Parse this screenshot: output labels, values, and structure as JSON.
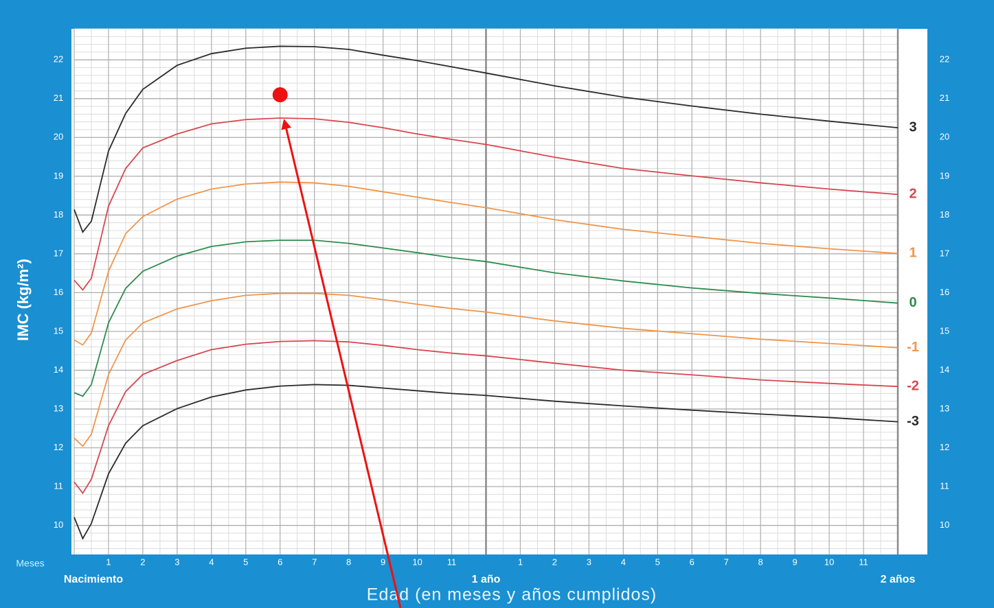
{
  "chart_data": {
    "type": "line",
    "y_label": "IMC (kg/m²)",
    "x_label": "Edad (en meses y años cumplidos)",
    "x_unit_label": "Meses",
    "xlim": [
      0,
      24
    ],
    "ylim": [
      9.25,
      22.8
    ],
    "yticks": [
      10,
      11,
      12,
      13,
      14,
      15,
      16,
      17,
      18,
      19,
      20,
      21,
      22
    ],
    "xticks": [
      {
        "value": 0,
        "label": "Nacimiento"
      },
      1,
      2,
      3,
      4,
      5,
      6,
      7,
      8,
      9,
      10,
      11,
      {
        "value": 12,
        "label": "1 año"
      },
      {
        "value": 13,
        "label": "1"
      },
      {
        "value": 14,
        "label": "2"
      },
      {
        "value": 15,
        "label": "3"
      },
      {
        "value": 16,
        "label": "4"
      },
      {
        "value": 17,
        "label": "5"
      },
      {
        "value": 18,
        "label": "6"
      },
      {
        "value": 19,
        "label": "7"
      },
      {
        "value": 20,
        "label": "8"
      },
      {
        "value": 21,
        "label": "9"
      },
      {
        "value": 22,
        "label": "10"
      },
      {
        "value": 23,
        "label": "11"
      },
      {
        "value": 24,
        "label": "2 años"
      }
    ],
    "grid": true,
    "x_minor_step": 0.5,
    "y_minor_step": 0.2,
    "x": [
      0,
      0.25,
      0.5,
      1,
      1.5,
      2,
      3,
      4,
      5,
      6,
      7,
      8,
      9,
      10,
      11,
      12,
      14,
      16,
      18,
      20,
      22,
      24
    ],
    "series": [
      {
        "name": "3",
        "color": "#2a2a2a",
        "values": [
          18.14,
          17.56,
          17.84,
          19.65,
          20.62,
          21.24,
          21.86,
          22.16,
          22.3,
          22.35,
          22.34,
          22.27,
          22.12,
          21.98,
          21.82,
          21.66,
          21.33,
          21.04,
          20.81,
          20.6,
          20.42,
          20.25
        ]
      },
      {
        "name": "2",
        "color": "#d9464e",
        "values": [
          16.32,
          16.07,
          16.37,
          18.23,
          19.2,
          19.73,
          20.09,
          20.35,
          20.46,
          20.5,
          20.48,
          20.39,
          20.25,
          20.09,
          19.95,
          19.82,
          19.49,
          19.2,
          19.01,
          18.83,
          18.67,
          18.53
        ]
      },
      {
        "name": "1",
        "color": "#f0954a",
        "values": [
          14.78,
          14.65,
          14.96,
          16.55,
          17.52,
          17.96,
          18.41,
          18.67,
          18.8,
          18.85,
          18.83,
          18.74,
          18.6,
          18.46,
          18.32,
          18.19,
          17.88,
          17.63,
          17.45,
          17.27,
          17.13,
          17.01
        ]
      },
      {
        "name": "0",
        "color": "#2e8b4e",
        "values": [
          13.42,
          13.33,
          13.63,
          15.22,
          16.11,
          16.55,
          16.94,
          17.19,
          17.31,
          17.35,
          17.35,
          17.27,
          17.15,
          17.03,
          16.9,
          16.8,
          16.51,
          16.3,
          16.12,
          15.98,
          15.86,
          15.73
        ]
      },
      {
        "name": "-1",
        "color": "#f0954a",
        "values": [
          12.25,
          12.04,
          12.35,
          13.89,
          14.78,
          15.22,
          15.58,
          15.79,
          15.93,
          15.98,
          15.98,
          15.93,
          15.82,
          15.7,
          15.59,
          15.5,
          15.27,
          15.08,
          14.94,
          14.8,
          14.69,
          14.58
        ]
      },
      {
        "name": "-2",
        "color": "#d9464e",
        "values": [
          11.12,
          10.83,
          11.19,
          12.57,
          13.45,
          13.89,
          14.25,
          14.53,
          14.67,
          14.74,
          14.76,
          14.73,
          14.64,
          14.53,
          14.44,
          14.37,
          14.18,
          14.0,
          13.88,
          13.75,
          13.66,
          13.58
        ]
      },
      {
        "name": "-3",
        "color": "#2a2a2a",
        "values": [
          10.21,
          9.66,
          10.05,
          11.33,
          12.12,
          12.57,
          13.01,
          13.31,
          13.49,
          13.59,
          13.63,
          13.61,
          13.54,
          13.47,
          13.4,
          13.35,
          13.2,
          13.08,
          12.97,
          12.87,
          12.78,
          12.67
        ]
      }
    ],
    "point": {
      "x": 6,
      "y": 21.1,
      "color": "#ee1111"
    }
  }
}
